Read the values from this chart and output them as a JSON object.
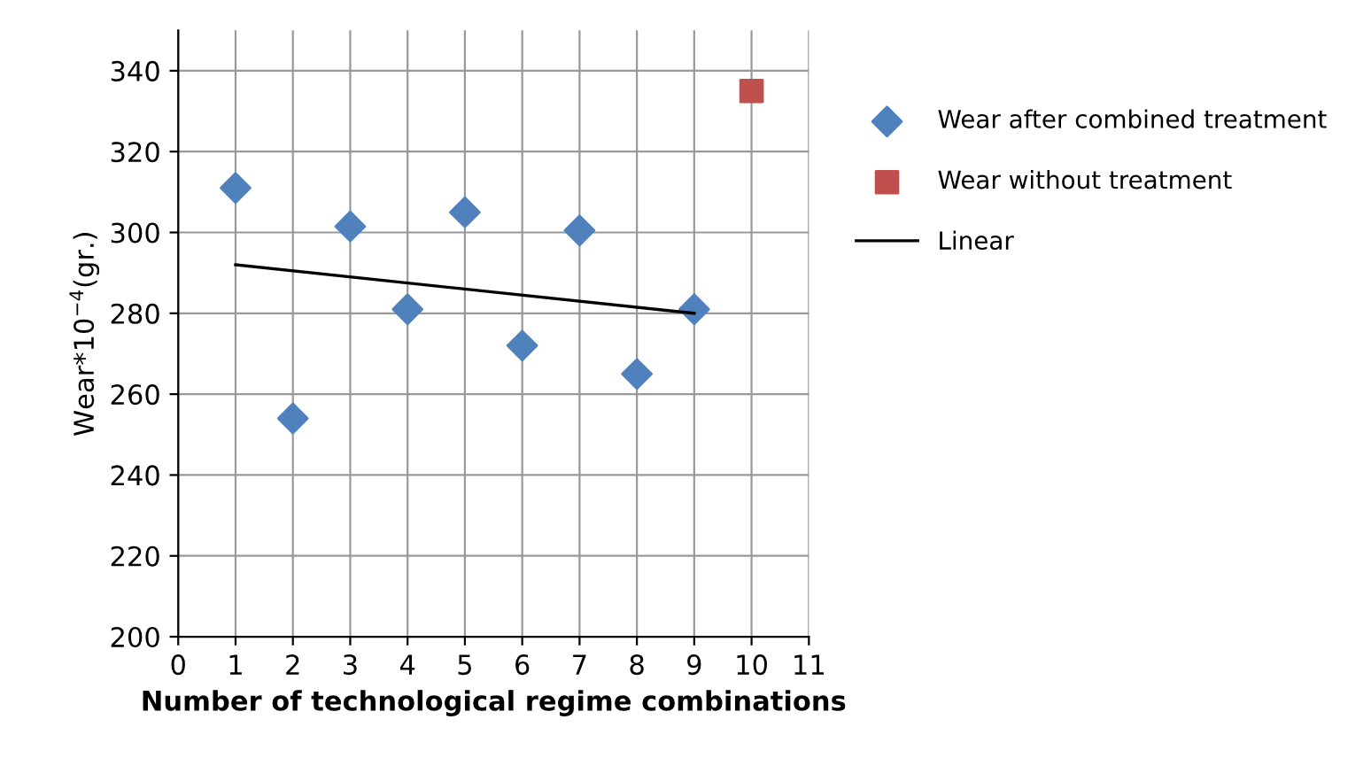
{
  "chart_data": {
    "type": "scatter",
    "xlabel": "Number of technological regime combinations",
    "ylabel": "Wear*10$^{−4}$(gr.)",
    "xlim": [
      0,
      11
    ],
    "xticks": [
      0,
      1,
      2,
      3,
      4,
      5,
      6,
      7,
      8,
      9,
      10,
      11
    ],
    "ylim": [
      200,
      350
    ],
    "yticks": [
      200,
      220,
      240,
      260,
      280,
      300,
      320,
      340
    ],
    "grid": true,
    "legend": "right",
    "series": [
      {
        "name": "Wear after combined treatment",
        "marker": "diamond",
        "color": "#4f81bd",
        "x": [
          1,
          2,
          3,
          4,
          5,
          6,
          7,
          8,
          9
        ],
        "values": [
          311,
          254,
          301.5,
          281,
          305,
          272,
          300.5,
          265,
          281
        ]
      },
      {
        "name": "Wear without treatment",
        "marker": "square",
        "color": "#c0504d",
        "x": [
          10
        ],
        "values": [
          335
        ]
      },
      {
        "name": "Linear",
        "type": "line",
        "marker": "none",
        "line_style": "solid",
        "color": "#000000",
        "x": [
          1,
          9
        ],
        "values": [
          292,
          280
        ]
      }
    ]
  }
}
